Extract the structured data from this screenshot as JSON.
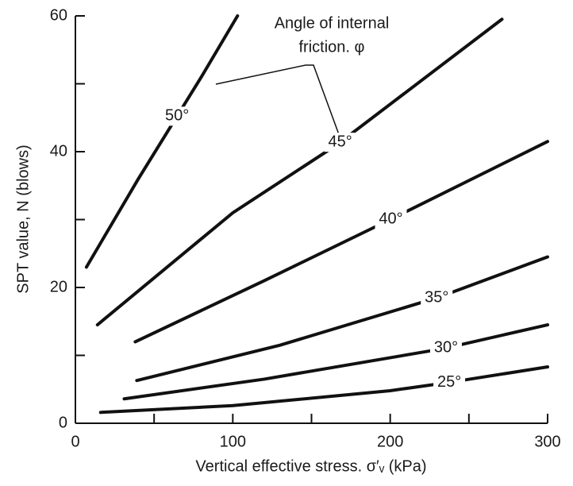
{
  "chart_data": {
    "type": "line",
    "xlabel": "Vertical effective stress. σ′ᵥ (kPa)",
    "ylabel": "SPT value, N (blows)",
    "annotation": [
      "Angle of internal",
      "friction. φ"
    ],
    "xlim": [
      0,
      300
    ],
    "ylim": [
      0,
      60
    ],
    "xticks": [
      0,
      100,
      200,
      300
    ],
    "yticks": [
      0,
      20,
      40,
      60
    ],
    "xminorticks": [
      50,
      150,
      250
    ],
    "yminorticks": [
      10,
      30,
      50
    ],
    "series": [
      {
        "name": "50°",
        "color": "#111111",
        "x": [
          7,
          40,
          80,
          103
        ],
        "values": [
          23,
          36,
          51,
          60
        ]
      },
      {
        "name": "45°",
        "color": "#111111",
        "x": [
          14,
          100,
          166,
          271
        ],
        "values": [
          14.5,
          31,
          41,
          59.5
        ]
      },
      {
        "name": "40°",
        "color": "#111111",
        "x": [
          38,
          120,
          200,
          300
        ],
        "values": [
          12,
          21,
          30,
          41.5
        ]
      },
      {
        "name": "35°",
        "color": "#111111",
        "x": [
          39,
          130,
          230,
          300
        ],
        "values": [
          6.3,
          11.5,
          18.5,
          24.5
        ]
      },
      {
        "name": "30°",
        "color": "#111111",
        "x": [
          31,
          120,
          234,
          300
        ],
        "values": [
          3.6,
          6.5,
          11,
          14.5
        ]
      },
      {
        "name": "25°",
        "color": "#111111",
        "x": [
          16,
          100,
          200,
          237,
          300
        ],
        "values": [
          1.6,
          2.6,
          4.8,
          6,
          8.3
        ]
      }
    ]
  }
}
